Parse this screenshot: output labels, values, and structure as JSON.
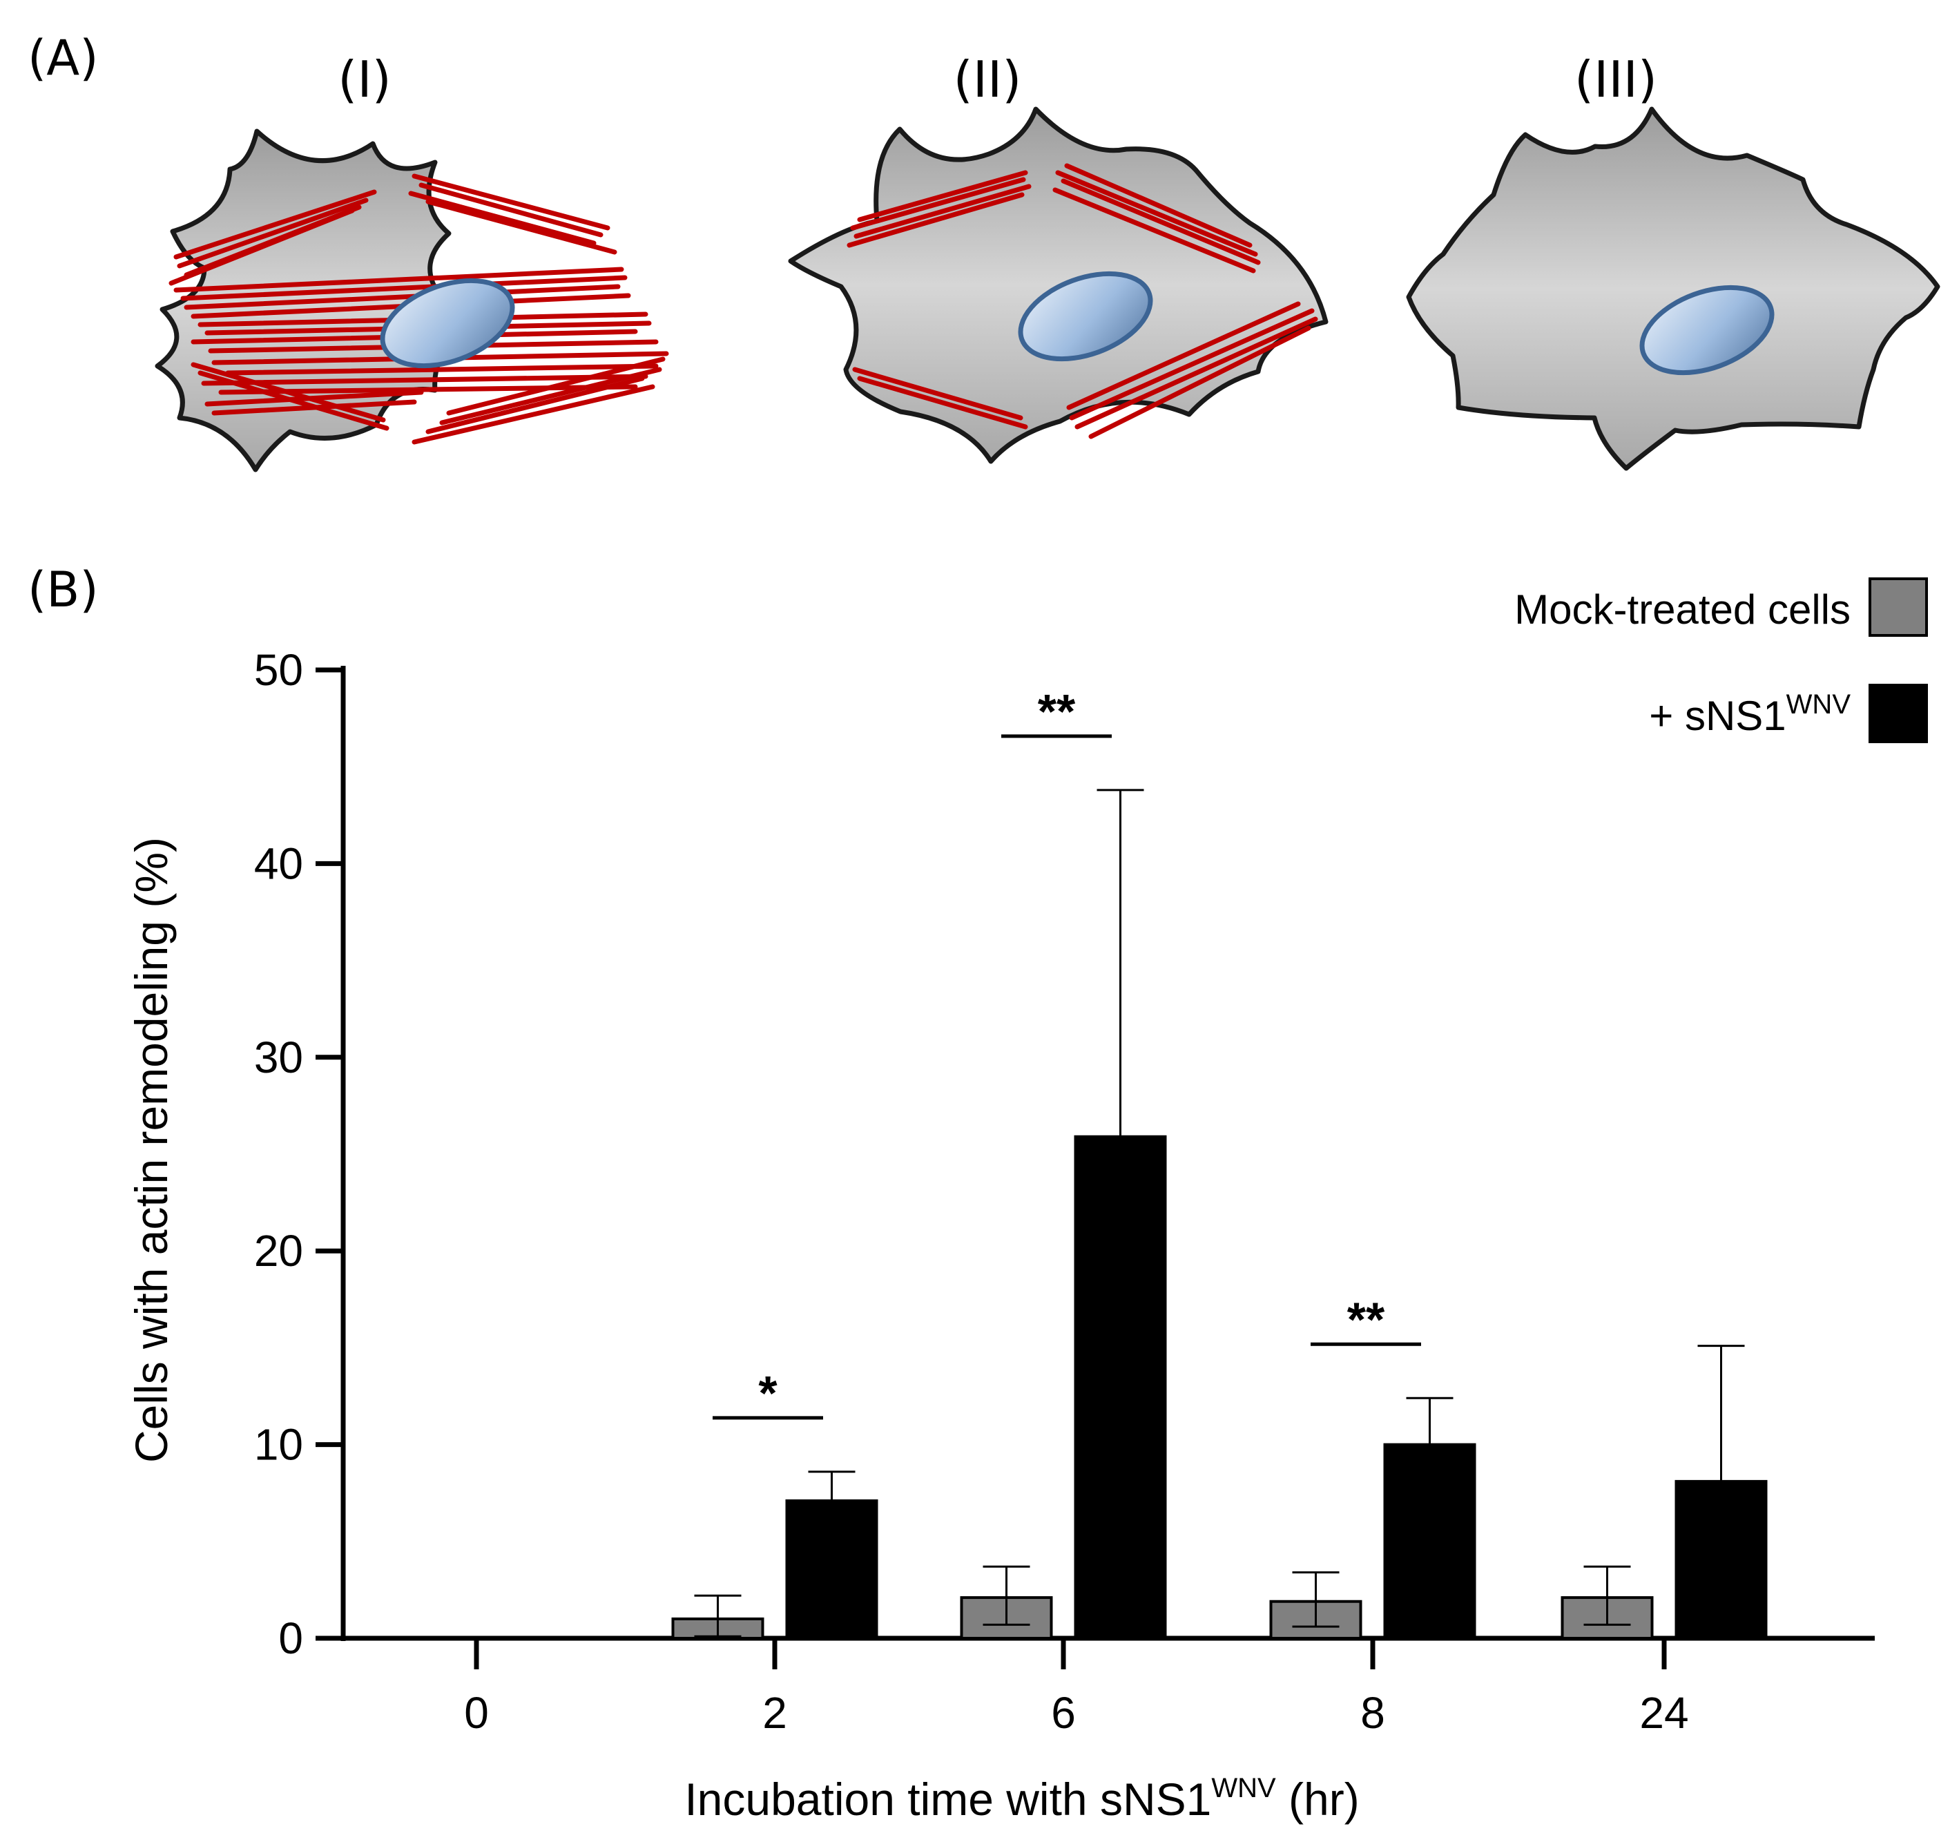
{
  "figure": {
    "panel_a_label": "(A)",
    "panel_b_label": "(B)",
    "cells": [
      {
        "label": "(I)",
        "fiber_level": "dense"
      },
      {
        "label": "(II)",
        "fiber_level": "peripheral"
      },
      {
        "label": "(III)",
        "fiber_level": "none"
      }
    ],
    "colors": {
      "cell_fill": "#c4c4c4",
      "cell_edge": "#1a1a1a",
      "actin": "#c00000",
      "nucleus_fill": "#a8c4e4",
      "nucleus_edge": "#3c6494",
      "mock_bar": "#808080",
      "treated_bar": "#000000"
    }
  },
  "chart_data": {
    "type": "bar",
    "categories": [
      "0",
      "2",
      "6",
      "8",
      "24"
    ],
    "series": [
      {
        "name": "Mock-treated cells",
        "color": "#808080",
        "values": [
          0,
          1.0,
          2.1,
          1.9,
          2.1
        ],
        "error_upper": [
          0,
          2.2,
          3.7,
          3.4,
          3.7
        ],
        "error_lower": [
          0,
          0.1,
          0.7,
          0.6,
          0.7
        ]
      },
      {
        "name": "+ sNS1",
        "name_sup": "WNV",
        "color": "#000000",
        "values": [
          0,
          7.1,
          25.9,
          10.0,
          8.1
        ],
        "error_upper": [
          0,
          8.6,
          43.8,
          12.4,
          15.1
        ]
      }
    ],
    "significance": [
      {
        "category": "2",
        "label": "*"
      },
      {
        "category": "6",
        "label": "**"
      },
      {
        "category": "8",
        "label": "**"
      }
    ],
    "y_ticks": [
      0,
      10,
      20,
      30,
      40,
      50
    ],
    "ylim": [
      0,
      50
    ],
    "ylabel": "Cells with actin remodeling (%)",
    "xlabel": "Incubation time with sNS1",
    "xlabel_sup": "WNV",
    "xlabel_suffix": " (hr)",
    "legend_position": "top-right"
  }
}
